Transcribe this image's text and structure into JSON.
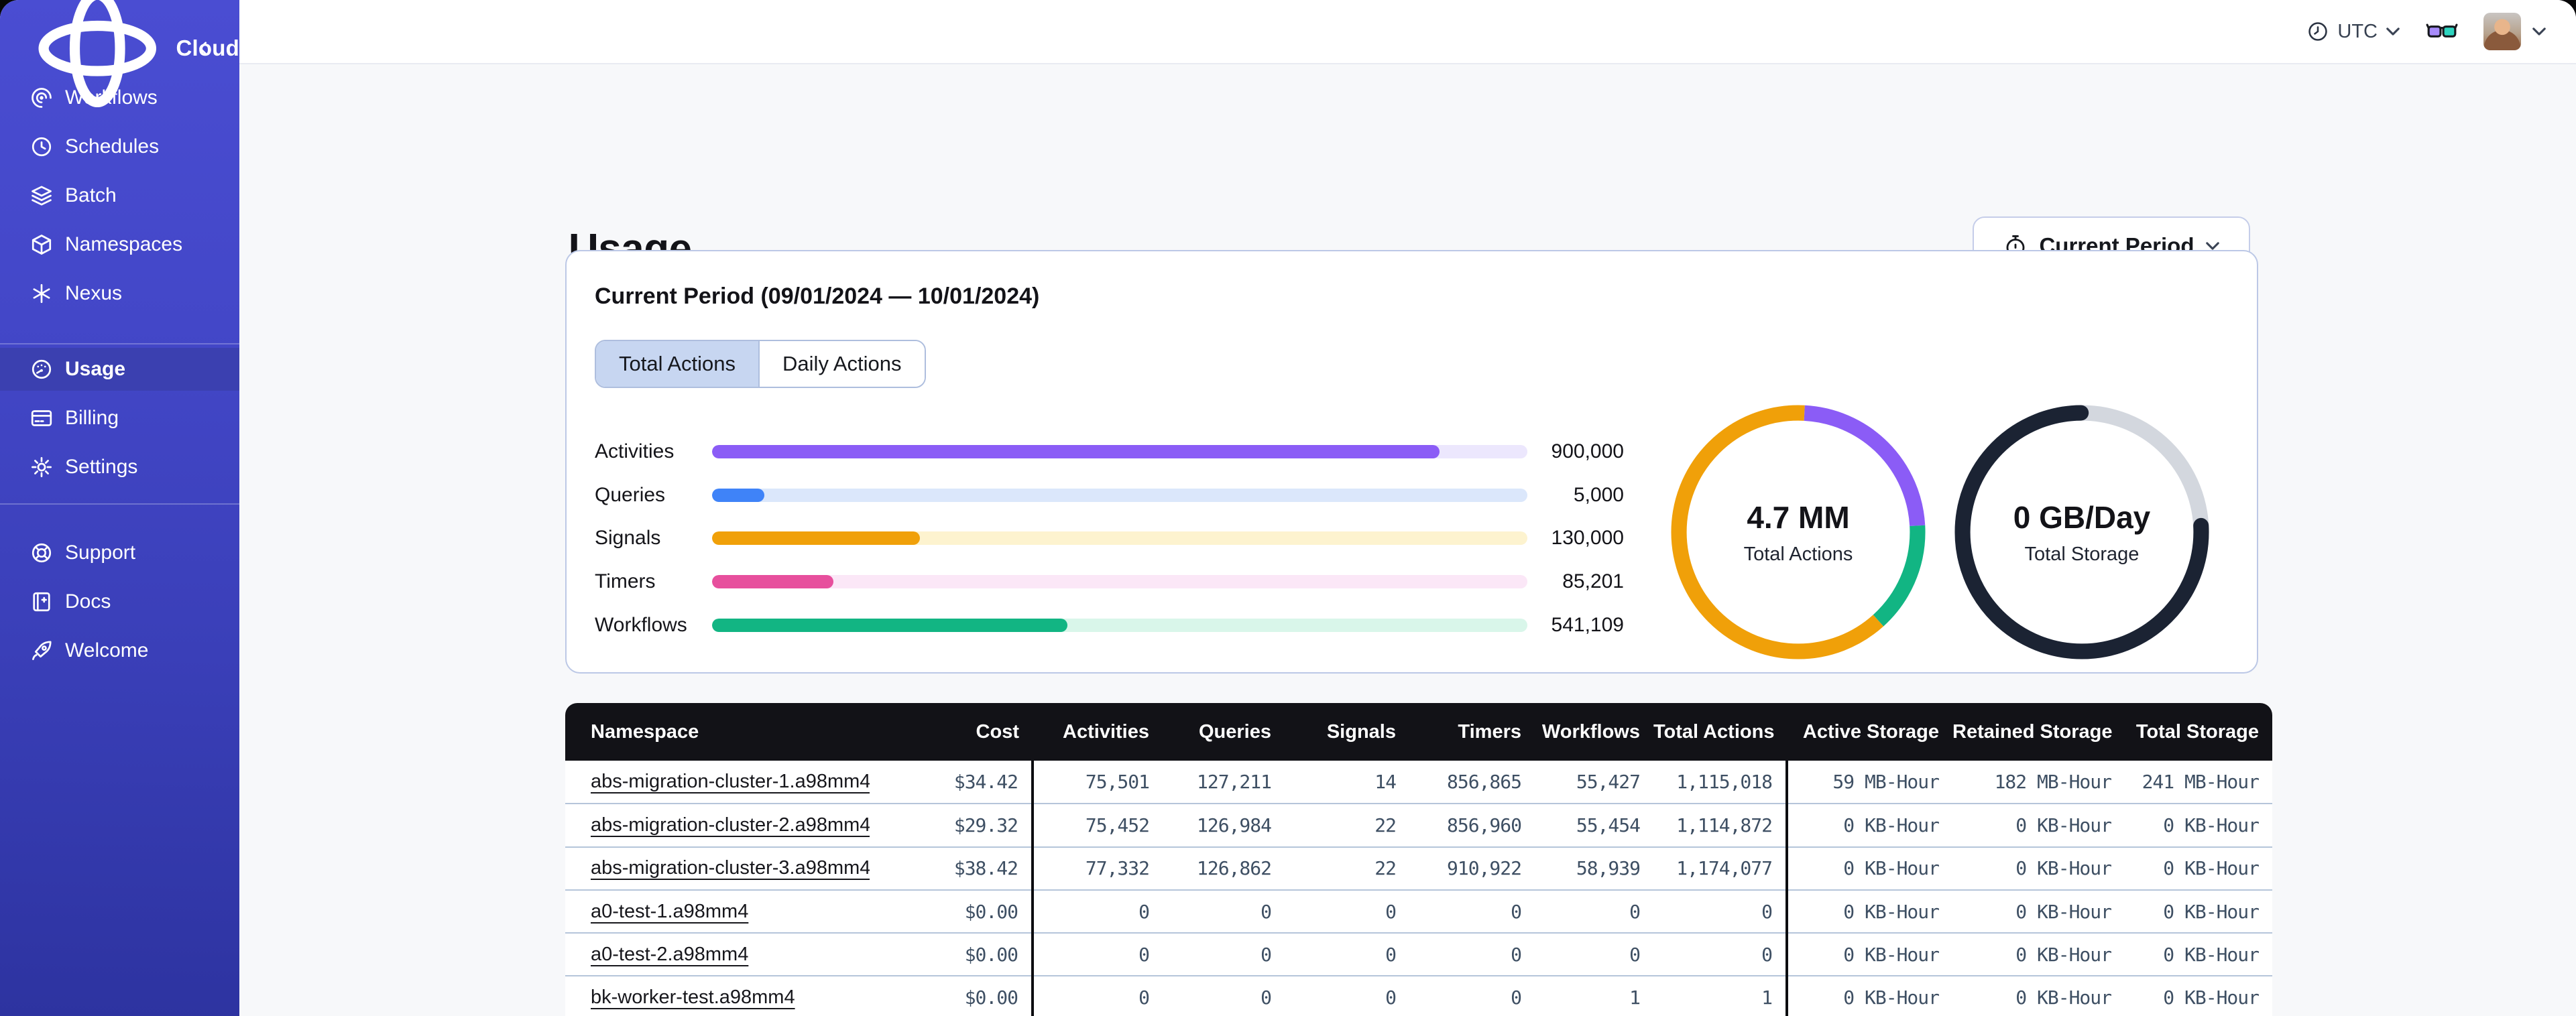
{
  "sidebar": {
    "brand": {
      "label": "Cloud"
    },
    "groups": [
      {
        "items": [
          {
            "label": "Workflows",
            "icon": "workflows-icon",
            "active": false
          },
          {
            "label": "Schedules",
            "icon": "schedules-icon",
            "active": false
          },
          {
            "label": "Batch",
            "icon": "batch-icon",
            "active": false
          },
          {
            "label": "Namespaces",
            "icon": "namespaces-icon",
            "active": false
          },
          {
            "label": "Nexus",
            "icon": "nexus-icon",
            "active": false
          }
        ]
      },
      {
        "items": [
          {
            "label": "Usage",
            "icon": "usage-icon",
            "active": true
          },
          {
            "label": "Billing",
            "icon": "billing-icon",
            "active": false
          },
          {
            "label": "Settings",
            "icon": "settings-icon",
            "active": false
          }
        ]
      },
      {
        "items": [
          {
            "label": "Support",
            "icon": "support-icon",
            "active": false
          },
          {
            "label": "Docs",
            "icon": "docs-icon",
            "active": false
          },
          {
            "label": "Welcome",
            "icon": "welcome-icon",
            "active": false
          }
        ]
      }
    ]
  },
  "topbar": {
    "timezone": "UTC"
  },
  "page": {
    "title": "Usage",
    "period_button": "Current Period"
  },
  "card": {
    "heading": "Current Period (09/01/2024 — 10/01/2024)",
    "tabs": [
      {
        "label": "Total Actions",
        "active": true
      },
      {
        "label": "Daily Actions",
        "active": false
      }
    ]
  },
  "chart_data": [
    {
      "type": "bar",
      "orientation": "horizontal",
      "categories": [
        "Activities",
        "Queries",
        "Signals",
        "Timers",
        "Workflows"
      ],
      "values": [
        900000,
        5000,
        130000,
        85201,
        541109
      ],
      "value_labels": [
        "900,000",
        "5,000",
        "130,000",
        "85,201",
        "541,109"
      ],
      "fill_percent": [
        89.2,
        6.4,
        25.5,
        14.9,
        43.6
      ],
      "colors": [
        "#8b5cf6",
        "#3f83f8",
        "#f0a009",
        "#e74f9d",
        "#12b583"
      ],
      "track_colors": [
        "#ece7fd",
        "#dbe7fb",
        "#fdf3cf",
        "#fbe7f7",
        "#d9f6ea"
      ]
    },
    {
      "type": "donut",
      "title": "4.7 MM",
      "subtitle": "Total Actions",
      "segments": [
        {
          "name": "signals",
          "color": "#f0a009",
          "start_deg": 138,
          "end_deg": 363,
          "cap": "butt"
        },
        {
          "name": "activities",
          "color": "#8b5cf6",
          "start_deg": 3,
          "end_deg": 87,
          "cap": "butt"
        },
        {
          "name": "workflows",
          "color": "#12b583",
          "start_deg": 87,
          "end_deg": 138,
          "cap": "butt"
        }
      ]
    },
    {
      "type": "donut",
      "title": "0 GB/Day",
      "subtitle": "Total Storage",
      "segments": [
        {
          "name": "remaining",
          "color": "#d3d7de",
          "start_deg": 0,
          "end_deg": 360,
          "cap": "butt"
        },
        {
          "name": "used",
          "color": "#1b2333",
          "start_deg": 87,
          "end_deg": 360,
          "cap": "round"
        }
      ]
    }
  ],
  "table": {
    "columns": [
      {
        "label": "Namespace"
      },
      {
        "label": "Cost"
      },
      {
        "label": "Activities"
      },
      {
        "label": "Queries"
      },
      {
        "label": "Signals"
      },
      {
        "label": "Timers"
      },
      {
        "label": "Workflows"
      },
      {
        "label": "Total Actions"
      },
      {
        "label": "Active Storage"
      },
      {
        "label": "Retained Storage"
      },
      {
        "label": "Total Storage"
      }
    ],
    "rows": [
      [
        "abs-migration-cluster-1.a98mm4",
        "$34.42",
        "75,501",
        "127,211",
        "14",
        "856,865",
        "55,427",
        "1,115,018",
        "59 MB-Hour",
        "182 MB-Hour",
        "241 MB-Hour"
      ],
      [
        "abs-migration-cluster-2.a98mm4",
        "$29.32",
        "75,452",
        "126,984",
        "22",
        "856,960",
        "55,454",
        "1,114,872",
        "0 KB-Hour",
        "0 KB-Hour",
        "0 KB-Hour"
      ],
      [
        "abs-migration-cluster-3.a98mm4",
        "$38.42",
        "77,332",
        "126,862",
        "22",
        "910,922",
        "58,939",
        "1,174,077",
        "0 KB-Hour",
        "0 KB-Hour",
        "0 KB-Hour"
      ],
      [
        "a0-test-1.a98mm4",
        "$0.00",
        "0",
        "0",
        "0",
        "0",
        "0",
        "0",
        "0 KB-Hour",
        "0 KB-Hour",
        "0 KB-Hour"
      ],
      [
        "a0-test-2.a98mm4",
        "$0.00",
        "0",
        "0",
        "0",
        "0",
        "0",
        "0",
        "0 KB-Hour",
        "0 KB-Hour",
        "0 KB-Hour"
      ],
      [
        "bk-worker-test.a98mm4",
        "$0.00",
        "0",
        "0",
        "0",
        "0",
        "1",
        "1",
        "0 KB-Hour",
        "0 KB-Hour",
        "0 KB-Hour"
      ]
    ]
  }
}
